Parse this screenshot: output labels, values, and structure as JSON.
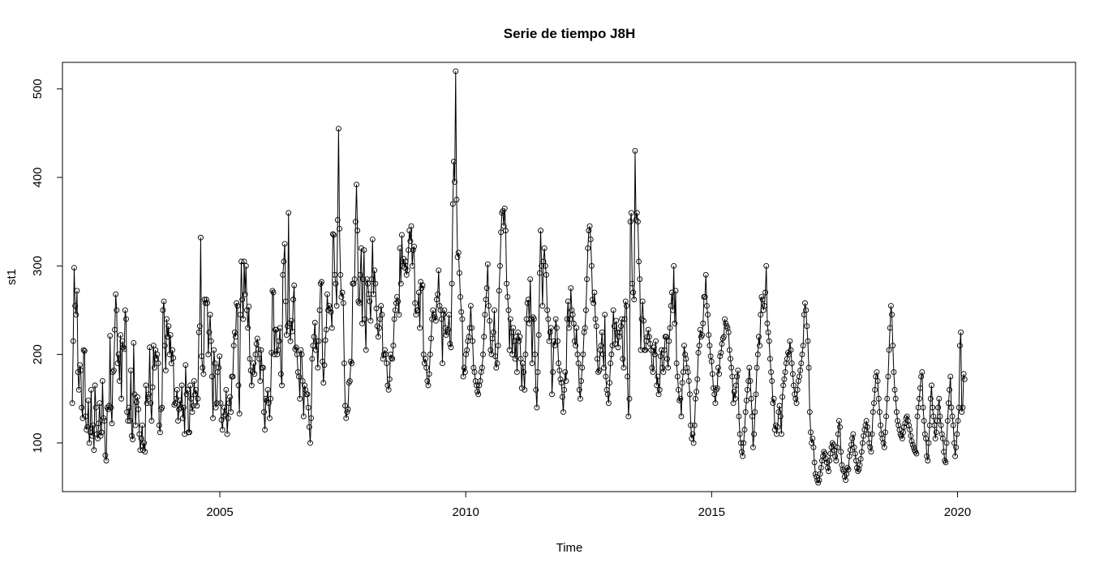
{
  "chart_data": {
    "type": "line",
    "title": "Serie de tiempo J8H",
    "xlabel": "Time",
    "ylabel": "st1",
    "xlim": [
      2001.8,
      2022.4
    ],
    "ylim": [
      45,
      530
    ],
    "x_ticks": [
      2005,
      2010,
      2015,
      2020
    ],
    "y_ticks": [
      100,
      200,
      300,
      400,
      500
    ],
    "x_tick_labels": [
      "2005",
      "2010",
      "2015",
      "2020"
    ],
    "y_tick_labels": [
      "100",
      "200",
      "300",
      "400",
      "500"
    ],
    "grid": false,
    "legend": "none",
    "point_marker": "open-circle",
    "line_color": "#000000",
    "frequency": "weekly",
    "x_start": 2002.0,
    "x_step": 0.0192,
    "series": [
      {
        "values": [
          145,
          215,
          298,
          255,
          245,
          272,
          180,
          160,
          188,
          182,
          140,
          128,
          205,
          204,
          130,
          115,
          118,
          148,
          100,
          112,
          160,
          108,
          120,
          92,
          165,
          140,
          110,
          105,
          122,
          145,
          108,
          112,
          170,
          128,
          125,
          86,
          80,
          140,
          138,
          142,
          221,
          140,
          122,
          180,
          182,
          228,
          268,
          250,
          190,
          200,
          170,
          222,
          150,
          215,
          208,
          206,
          250,
          240,
          135,
          125,
          140,
          125,
          182,
          108,
          104,
          213,
          155,
          120,
          146,
          152,
          138,
          110,
          92,
          105,
          120,
          92,
          100,
          90,
          165,
          145,
          152,
          155,
          208,
          145,
          125,
          163,
          210,
          185,
          205,
          195,
          200,
          190,
          120,
          112,
          138,
          140,
          250,
          260,
          210,
          182,
          240,
          220,
          232,
          200,
          222,
          190,
          205,
          196,
          143,
          145,
          150,
          160,
          125,
          138,
          148,
          140,
          165,
          128,
          140,
          110,
          188,
          155,
          160,
          112,
          112,
          165,
          150,
          135,
          142,
          170,
          155,
          160,
          142,
          150,
          225,
          232,
          332,
          198,
          185,
          178,
          262,
          258,
          262,
          258,
          200,
          225,
          245,
          215,
          175,
          128,
          205,
          190,
          140,
          145,
          180,
          185,
          198,
          145,
          126,
          115,
          130,
          140,
          132,
          160,
          110,
          128,
          145,
          152,
          135,
          175,
          175,
          210,
          225,
          220,
          258,
          255,
          165,
          133,
          245,
          305,
          262,
          240,
          305,
          268,
          300,
          250,
          230,
          254,
          195,
          182,
          165,
          180,
          190,
          178,
          200,
          212,
          218,
          206,
          195,
          170,
          205,
          185,
          185,
          135,
          115,
          150,
          148,
          160,
          145,
          128,
          150,
          202,
          272,
          270,
          200,
          228,
          228,
          200,
          205,
          215,
          230,
          178,
          165,
          290,
          305,
          325,
          260,
          222,
          232,
          360,
          235,
          215,
          238,
          226,
          262,
          278,
          206,
          208,
          200,
          180,
          175,
          150,
          205,
          200,
          170,
          130,
          165,
          160,
          155,
          155,
          140,
          118,
          100,
          128,
          195,
          210,
          220,
          236,
          205,
          215,
          185,
          215,
          250,
          280,
          282,
          192,
          168,
          188,
          216,
          228,
          268,
          250,
          255,
          252,
          248,
          230,
          336,
          335,
          290,
          280,
          255,
          352,
          455,
          342,
          290,
          265,
          270,
          258,
          190,
          142,
          128,
          135,
          138,
          168,
          170,
          192,
          190,
          280,
          280,
          285,
          350,
          392,
          340,
          260,
          258,
          290,
          320,
          235,
          285,
          318,
          240,
          205,
          285,
          280,
          268,
          260,
          238,
          285,
          330,
          268,
          295,
          280,
          252,
          232,
          220,
          230,
          240,
          255,
          245,
          195,
          200,
          205,
          200,
          190,
          165,
          160,
          172,
          200,
          196,
          195,
          210,
          240,
          250,
          258,
          265,
          260,
          245,
          320,
          280,
          335,
          300,
          308,
          298,
          305,
          290,
          295,
          318,
          340,
          328,
          345,
          300,
          318,
          322,
          258,
          245,
          250,
          250,
          270,
          230,
          282,
          275,
          278,
          200,
          190,
          195,
          185,
          170,
          165,
          178,
          200,
          218,
          240,
          250,
          245,
          242,
          238,
          262,
          268,
          295,
          255,
          250,
          240,
          190,
          245,
          250,
          230,
          222,
          225,
          228,
          245,
          212,
          208,
          280,
          370,
          418,
          395,
          520,
          375,
          310,
          315,
          292,
          265,
          248,
          240,
          175,
          185,
          180,
          200,
          205,
          215,
          220,
          230,
          255,
          230,
          215,
          185,
          180,
          170,
          165,
          158,
          155,
          165,
          170,
          180,
          185,
          200,
          220,
          245,
          262,
          275,
          302,
          255,
          238,
          205,
          200,
          218,
          225,
          250,
          198,
          185,
          190,
          210,
          272,
          300,
          338,
          360,
          362,
          345,
          365,
          340,
          280,
          265,
          250,
          205,
          240,
          225,
          200,
          230,
          215,
          195,
          220,
          180,
          225,
          215,
          220,
          195,
          162,
          190,
          180,
          160,
          200,
          240,
          258,
          262,
          235,
          285,
          240,
          190,
          242,
          240,
          200,
          160,
          140,
          180,
          222,
          292,
          340,
          300,
          255,
          305,
          320,
          300,
          290,
          250,
          240,
          215,
          225,
          230,
          155,
          180,
          215,
          210,
          240,
          230,
          215,
          190,
          182,
          172,
          168,
          152,
          135,
          160,
          180,
          170,
          240,
          260,
          230,
          240,
          275,
          250,
          245,
          235,
          215,
          210,
          230,
          200,
          190,
          160,
          150,
          170,
          185,
          200,
          225,
          230,
          250,
          285,
          320,
          340,
          345,
          330,
          300,
          262,
          258,
          270,
          240,
          232,
          195,
          180,
          182,
          205,
          210,
          225,
          200,
          185,
          245,
          175,
          160,
          155,
          145,
          168,
          190,
          200,
          210,
          250,
          232,
          212,
          238,
          225,
          208,
          220,
          225,
          232,
          240,
          195,
          185,
          240,
          260,
          255,
          175,
          130,
          150,
          350,
          360,
          280,
          270,
          262,
          430,
          352,
          360,
          350,
          305,
          285,
          205,
          240,
          260,
          238,
          205,
          205,
          215,
          220,
          228,
          220,
          212,
          205,
          185,
          180,
          208,
          200,
          215,
          165,
          175,
          155,
          160,
          198,
          205,
          185,
          180,
          205,
          220,
          220,
          195,
          185,
          215,
          230,
          255,
          270,
          250,
          300,
          235,
          272,
          190,
          175,
          160,
          148,
          150,
          130,
          168,
          180,
          210,
          200,
          195,
          185,
          180,
          170,
          155,
          120,
          105,
          110,
          100,
          120,
          150,
          158,
          172,
          202,
          210,
          228,
          220,
          222,
          235,
          265,
          265,
          290,
          255,
          245,
          222,
          210,
          198,
          192,
          178,
          162,
          155,
          145,
          160,
          162,
          185,
          178,
          198,
          202,
          212,
          218,
          220,
          240,
          235,
          232,
          230,
          225,
          205,
          195,
          185,
          175,
          145,
          158,
          150,
          165,
          175,
          182,
          130,
          110,
          100,
          90,
          85,
          100,
          115,
          135,
          148,
          160,
          170,
          185,
          170,
          150,
          130,
          95,
          110,
          135,
          155,
          185,
          200,
          220,
          210,
          245,
          265,
          262,
          250,
          255,
          270,
          300,
          235,
          225,
          215,
          195,
          180,
          170,
          145,
          150,
          115,
          120,
          110,
          118,
          135,
          142,
          130,
          110,
          152,
          165,
          172,
          180,
          190,
          195,
          202,
          200,
          215,
          205,
          190,
          178,
          165,
          155,
          150,
          145,
          160,
          170,
          175,
          182,
          190,
          200,
          210,
          245,
          258,
          250,
          232,
          215,
          185,
          135,
          112,
          100,
          105,
          95,
          78,
          65,
          62,
          58,
          55,
          58,
          65,
          72,
          80,
          85,
          90,
          88,
          82,
          78,
          72,
          68,
          80,
          88,
          95,
          100,
          98,
          92,
          85,
          80,
          95,
          110,
          125,
          118,
          90,
          75,
          70,
          68,
          62,
          58,
          65,
          72,
          70,
          85,
          92,
          98,
          105,
          110,
          95,
          88,
          80,
          72,
          68,
          70,
          75,
          82,
          90,
          100,
          108,
          115,
          120,
          125,
          118,
          110,
          100,
          95,
          90,
          110,
          135,
          145,
          160,
          175,
          180,
          170,
          150,
          135,
          120,
          110,
          105,
          100,
          95,
          112,
          130,
          150,
          175,
          205,
          230,
          255,
          245,
          210,
          180,
          160,
          150,
          135,
          125,
          120,
          115,
          110,
          108,
          105,
          112,
          118,
          122,
          128,
          130,
          125,
          120,
          115,
          108,
          102,
          98,
          95,
          92,
          90,
          88,
          130,
          140,
          150,
          162,
          175,
          180,
          140,
          125,
          110,
          105,
          85,
          80,
          100,
          120,
          150,
          165,
          140,
          130,
          120,
          105,
          112,
          125,
          140,
          150,
          130,
          120,
          110,
          105,
          90,
          80,
          78,
          100,
          125,
          145,
          160,
          175,
          140,
          130,
          120,
          100,
          85,
          95,
          110,
          125,
          140,
          210,
          225,
          135,
          140,
          178,
          172
        ]
      }
    ]
  }
}
